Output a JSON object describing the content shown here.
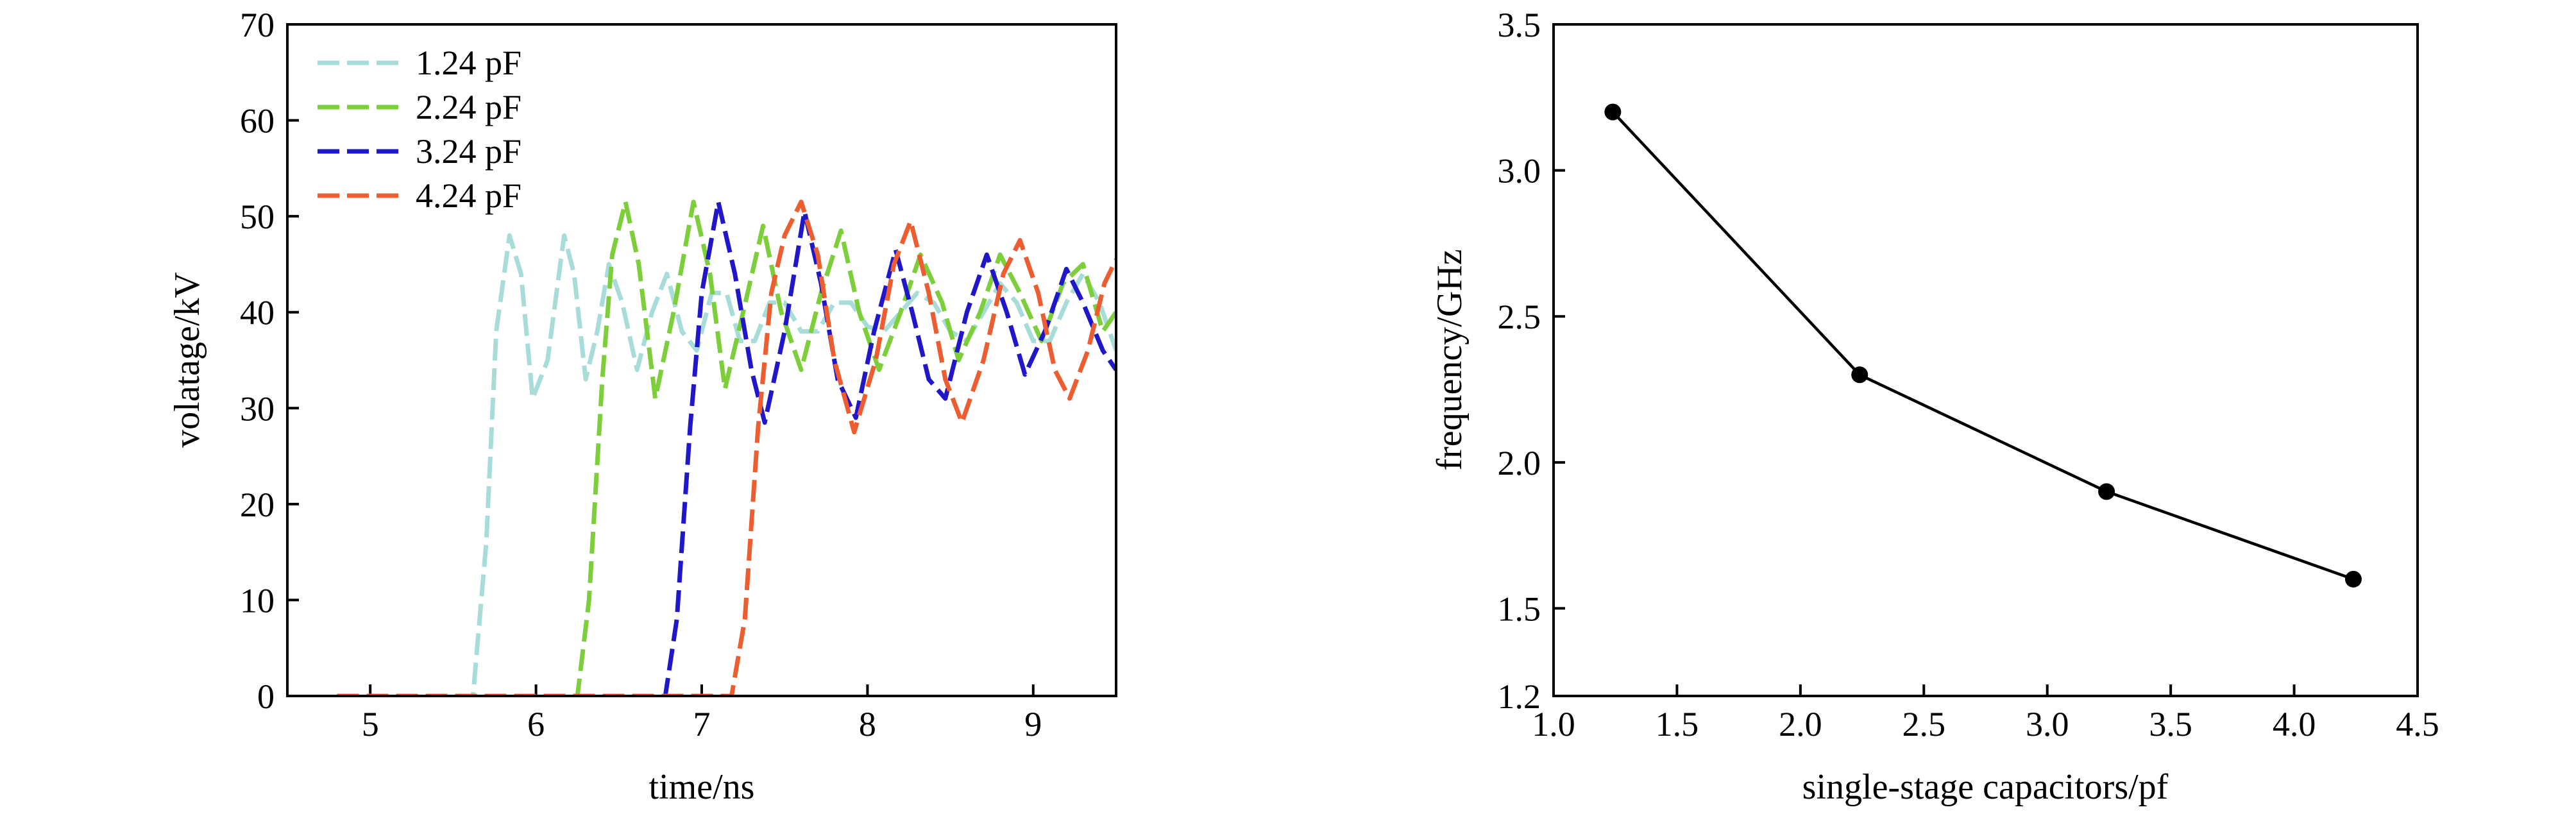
{
  "chart_data": [
    {
      "type": "line",
      "title": "",
      "xlabel": "time/ns",
      "ylabel": "volatage/kV",
      "xlim": [
        4.5,
        9.5
      ],
      "ylim": [
        0,
        70
      ],
      "xticks": [
        5,
        6,
        7,
        8,
        9
      ],
      "yticks": [
        0,
        10,
        20,
        30,
        40,
        50,
        60,
        70
      ],
      "grid": false,
      "legend": "top-left",
      "series": [
        {
          "name": "1.24 pF",
          "color": "#a8dcd9",
          "dash": "dashed",
          "points": [
            [
              4.8,
              0
            ],
            [
              5.62,
              0
            ],
            [
              5.7,
              16
            ],
            [
              5.76,
              38
            ],
            [
              5.84,
              48
            ],
            [
              5.91,
              44
            ],
            [
              5.98,
              31
            ],
            [
              6.07,
              35
            ],
            [
              6.17,
              48
            ],
            [
              6.23,
              44
            ],
            [
              6.3,
              33
            ],
            [
              6.37,
              38
            ],
            [
              6.44,
              45
            ],
            [
              6.52,
              41
            ],
            [
              6.61,
              34
            ],
            [
              6.7,
              40
            ],
            [
              6.79,
              44
            ],
            [
              6.88,
              38
            ],
            [
              6.97,
              36
            ],
            [
              7.06,
              42
            ],
            [
              7.15,
              42
            ],
            [
              7.23,
              37
            ],
            [
              7.32,
              37
            ],
            [
              7.41,
              41
            ],
            [
              7.5,
              41
            ],
            [
              7.6,
              38
            ],
            [
              7.7,
              38
            ],
            [
              7.8,
              41
            ],
            [
              7.9,
              41
            ],
            [
              8.0,
              38.5
            ],
            [
              8.1,
              38
            ],
            [
              8.2,
              40
            ],
            [
              8.3,
              42
            ],
            [
              8.4,
              41
            ],
            [
              8.5,
              38
            ],
            [
              8.6,
              37
            ],
            [
              8.7,
              40
            ],
            [
              8.8,
              43
            ],
            [
              8.9,
              41
            ],
            [
              9.0,
              37
            ],
            [
              9.1,
              37
            ],
            [
              9.2,
              41
            ],
            [
              9.3,
              44
            ],
            [
              9.4,
              41
            ],
            [
              9.5,
              36
            ]
          ]
        },
        {
          "name": "2.24 pF",
          "color": "#7ccf3a",
          "dash": "dashed",
          "points": [
            [
              4.8,
              0
            ],
            [
              6.25,
              0
            ],
            [
              6.32,
              10
            ],
            [
              6.4,
              33
            ],
            [
              6.46,
              46
            ],
            [
              6.54,
              51.5
            ],
            [
              6.62,
              45
            ],
            [
              6.72,
              31
            ],
            [
              6.83,
              40
            ],
            [
              6.95,
              51.5
            ],
            [
              7.05,
              44
            ],
            [
              7.14,
              32
            ],
            [
              7.25,
              40
            ],
            [
              7.37,
              49
            ],
            [
              7.48,
              40
            ],
            [
              7.6,
              34
            ],
            [
              7.72,
              42
            ],
            [
              7.84,
              48.5
            ],
            [
              7.95,
              40
            ],
            [
              8.07,
              34
            ],
            [
              8.2,
              40
            ],
            [
              8.32,
              46
            ],
            [
              8.45,
              41
            ],
            [
              8.55,
              35
            ],
            [
              8.68,
              40
            ],
            [
              8.8,
              46
            ],
            [
              8.92,
              42
            ],
            [
              9.05,
              37
            ],
            [
              9.18,
              43
            ],
            [
              9.3,
              45
            ],
            [
              9.42,
              38
            ],
            [
              9.5,
              40
            ]
          ]
        },
        {
          "name": "3.24 pF",
          "color": "#1f17c9",
          "dash": "dashed",
          "points": [
            [
              4.8,
              0
            ],
            [
              6.78,
              0
            ],
            [
              6.85,
              8
            ],
            [
              6.93,
              28
            ],
            [
              7.0,
              42
            ],
            [
              7.1,
              51.5
            ],
            [
              7.2,
              44
            ],
            [
              7.3,
              34
            ],
            [
              7.38,
              28.5
            ],
            [
              7.5,
              38
            ],
            [
              7.62,
              50.5
            ],
            [
              7.72,
              43
            ],
            [
              7.82,
              33
            ],
            [
              7.93,
              29
            ],
            [
              8.04,
              38
            ],
            [
              8.17,
              46.5
            ],
            [
              8.27,
              40
            ],
            [
              8.37,
              33
            ],
            [
              8.47,
              31
            ],
            [
              8.6,
              40
            ],
            [
              8.72,
              46
            ],
            [
              8.84,
              40
            ],
            [
              8.95,
              33.5
            ],
            [
              9.07,
              38
            ],
            [
              9.2,
              44.5
            ],
            [
              9.3,
              41
            ],
            [
              9.42,
              36
            ],
            [
              9.5,
              34
            ]
          ]
        },
        {
          "name": "4.24 pF",
          "color": "#ee5d2f",
          "dash": "dashed",
          "points": [
            [
              4.8,
              0
            ],
            [
              7.18,
              0
            ],
            [
              7.26,
              8
            ],
            [
              7.34,
              28
            ],
            [
              7.42,
              42
            ],
            [
              7.5,
              48
            ],
            [
              7.6,
              51.5
            ],
            [
              7.7,
              46
            ],
            [
              7.8,
              35
            ],
            [
              7.92,
              27.5
            ],
            [
              8.05,
              35
            ],
            [
              8.16,
              45
            ],
            [
              8.26,
              49.5
            ],
            [
              8.37,
              42
            ],
            [
              8.47,
              33
            ],
            [
              8.57,
              28.5
            ],
            [
              8.7,
              35
            ],
            [
              8.82,
              44
            ],
            [
              8.92,
              47.5
            ],
            [
              9.03,
              42
            ],
            [
              9.13,
              34
            ],
            [
              9.22,
              31
            ],
            [
              9.33,
              36
            ],
            [
              9.43,
              43
            ],
            [
              9.5,
              45.5
            ]
          ]
        }
      ]
    },
    {
      "type": "line",
      "title": "",
      "xlabel": "single-stage capacitors/pf",
      "ylabel": "frequency/GHz",
      "xlim": [
        1.0,
        4.5
      ],
      "ylim": [
        1.2,
        3.5
      ],
      "xticks": [
        "1.0",
        "1.5",
        "2.0",
        "2.5",
        "3.0",
        "3.5",
        "4.0",
        "4.5"
      ],
      "yticks": [
        "1.2",
        "1.5",
        "2.0",
        "2.5",
        "3.0",
        "3.5"
      ],
      "grid": false,
      "legend": "none",
      "series": [
        {
          "color": "#000000",
          "marker": "circle",
          "points": [
            [
              1.24,
              3.2
            ],
            [
              2.24,
              2.3
            ],
            [
              3.24,
              1.9
            ],
            [
              4.24,
              1.6
            ]
          ]
        }
      ]
    }
  ]
}
